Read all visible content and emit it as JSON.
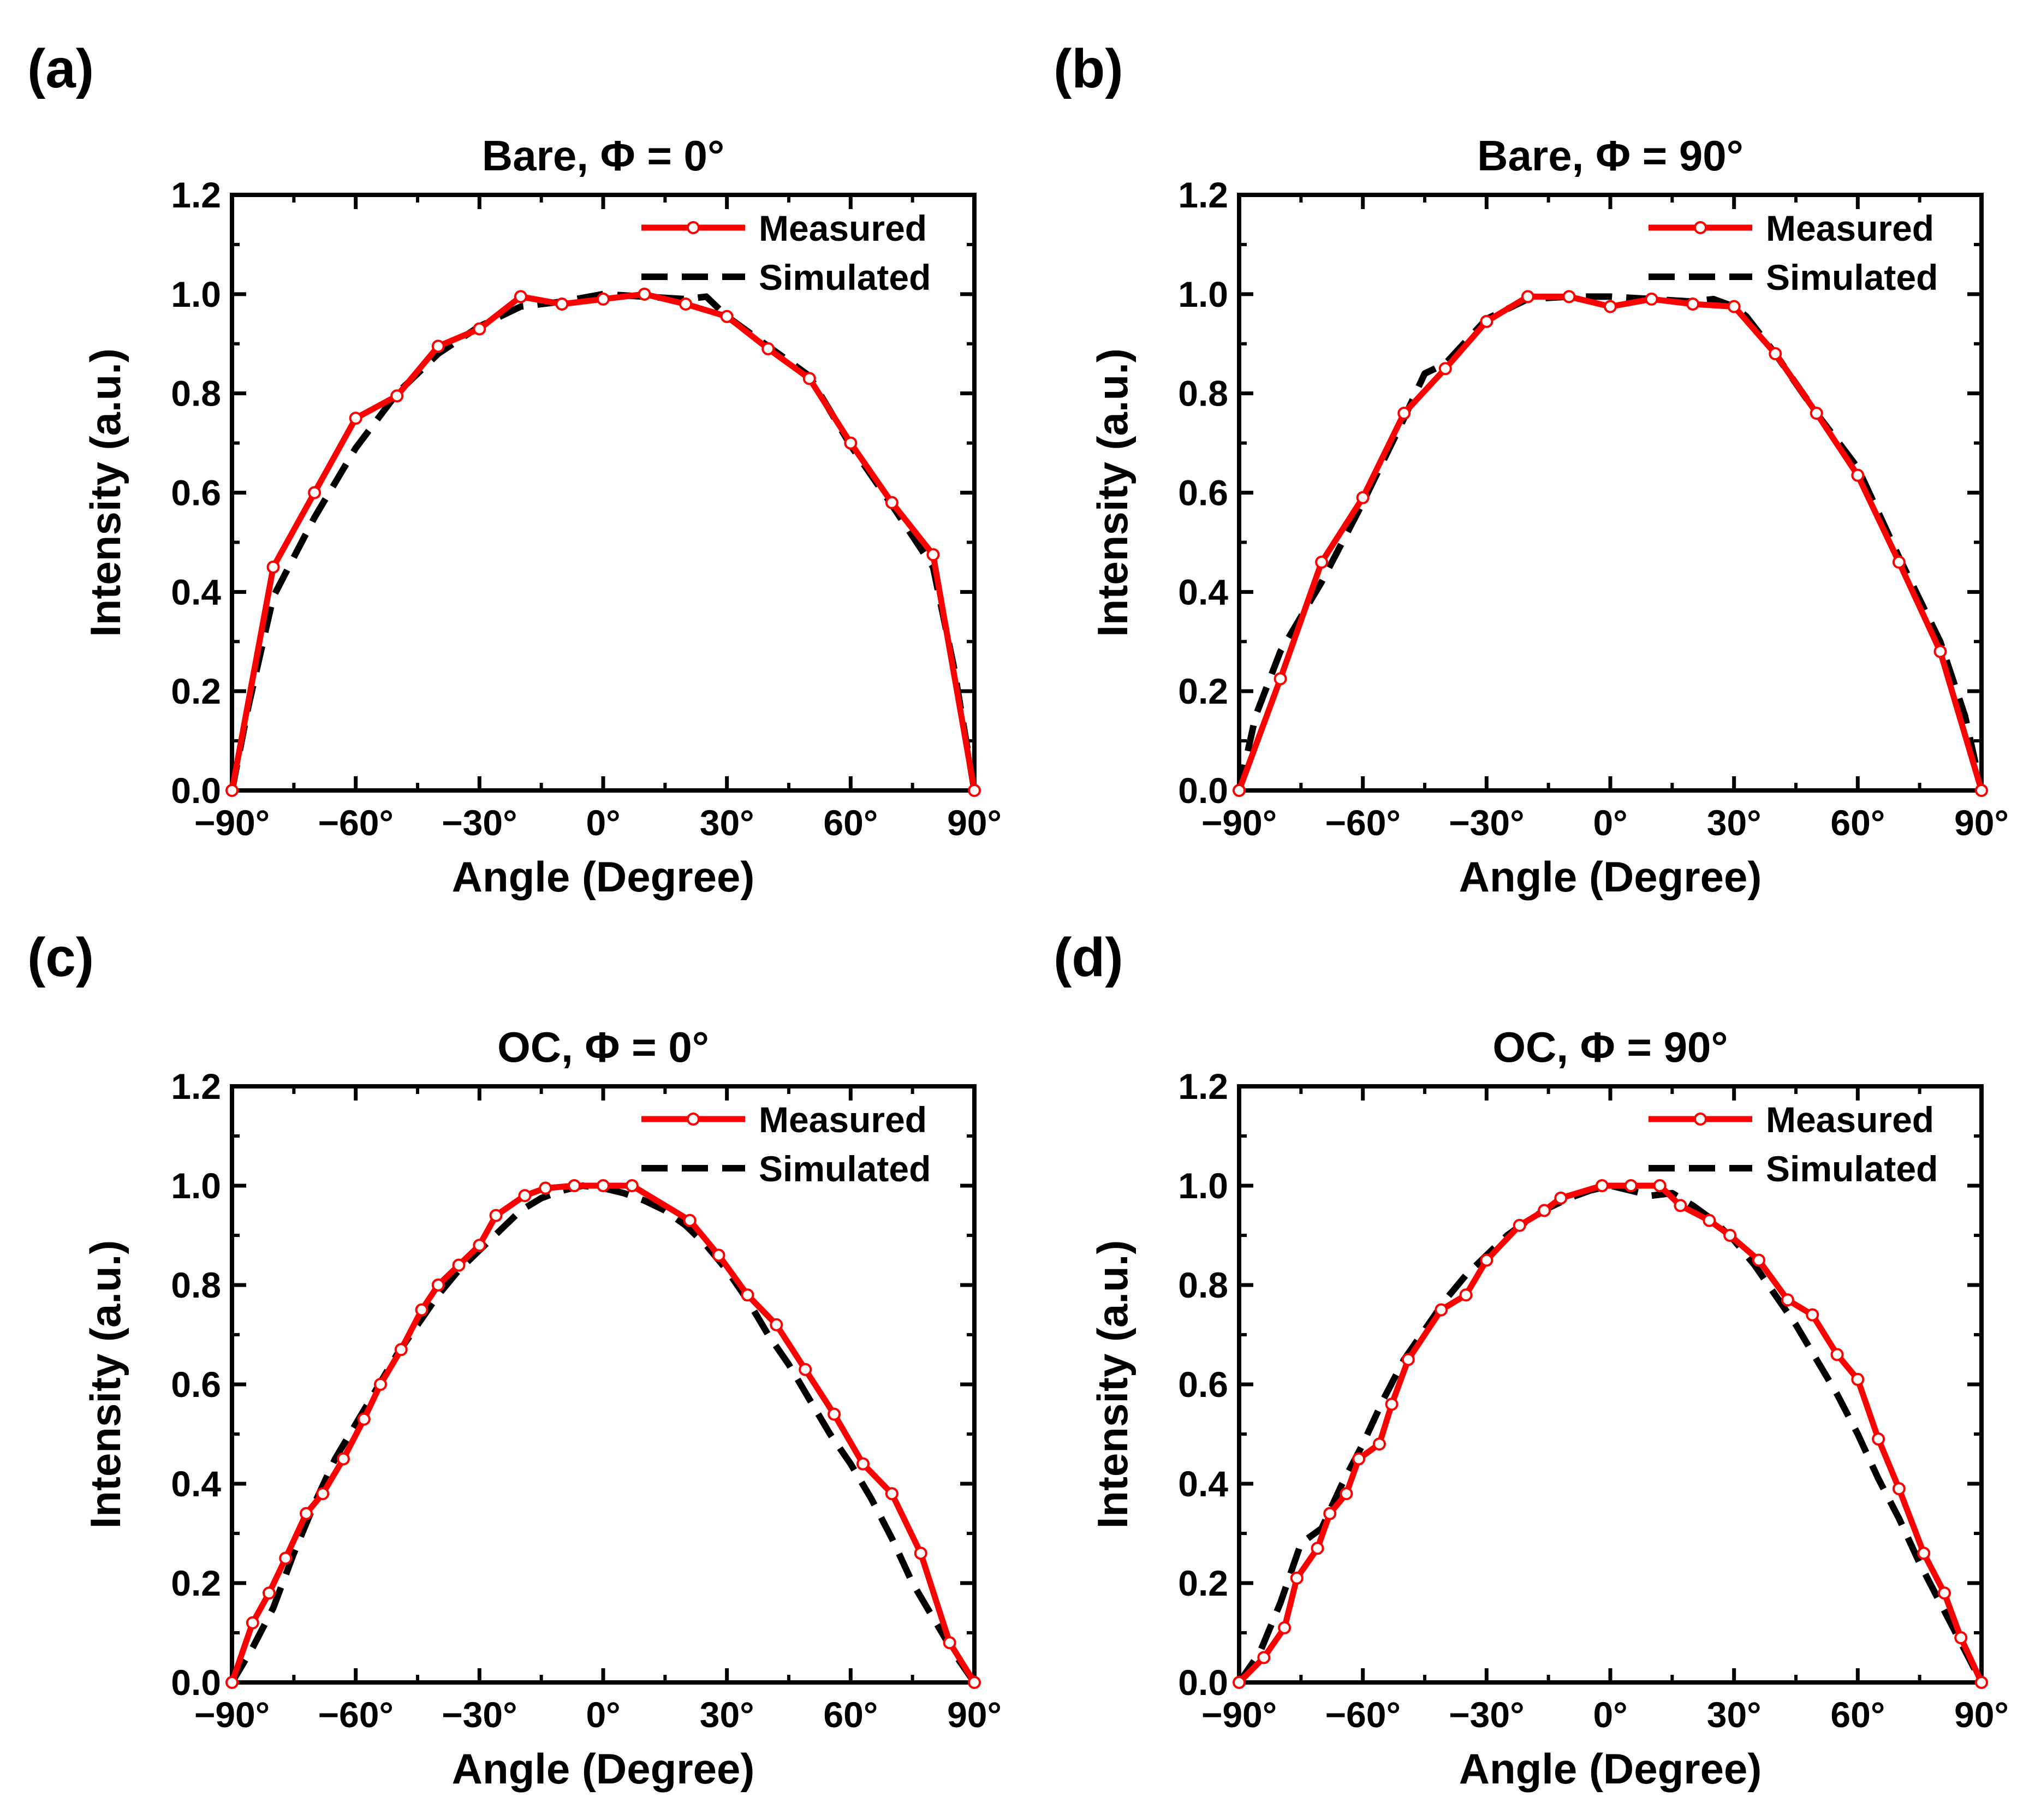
{
  "figure": {
    "colors": {
      "measured": "#ff0000",
      "simulated": "#000000",
      "axis": "#000000",
      "marker_fill": "#ffffff"
    }
  },
  "chart_data": [
    {
      "panel_label": "(a)",
      "type": "line",
      "title": "Bare, Φ = 0°",
      "xlabel": "Angle (Degree)",
      "ylabel": "Intensity (a.u.)",
      "xlim": [
        -90,
        90
      ],
      "ylim": [
        0,
        1.2
      ],
      "xticks": [
        -90,
        -60,
        -30,
        0,
        30,
        60,
        90
      ],
      "xtick_labels": [
        "−90°",
        "−60°",
        "−30°",
        "0°",
        "30°",
        "60°",
        "90°"
      ],
      "yticks": [
        0,
        0.2,
        0.4,
        0.6,
        0.8,
        1.0,
        1.2
      ],
      "ytick_labels": [
        "0.0",
        "0.2",
        "0.4",
        "0.6",
        "0.8",
        "1.0",
        "1.2"
      ],
      "legend": "top-right",
      "series": [
        {
          "name": "Measured",
          "style": "solid-marker",
          "x": [
            -90,
            -80,
            -70,
            -60,
            -50,
            -40,
            -30,
            -20,
            -10,
            0,
            10,
            20,
            30,
            40,
            50,
            60,
            70,
            80,
            90
          ],
          "y": [
            0.0,
            0.45,
            0.6,
            0.75,
            0.795,
            0.895,
            0.93,
            0.995,
            0.98,
            0.99,
            1.0,
            0.98,
            0.955,
            0.89,
            0.83,
            0.7,
            0.58,
            0.475,
            0.0
          ]
        },
        {
          "name": "Simulated",
          "style": "dashed",
          "x": [
            -90,
            -86,
            -80,
            -75,
            -70,
            -60,
            -50,
            -40,
            -30,
            -20,
            -10,
            0,
            10,
            20,
            25,
            30,
            40,
            50,
            60,
            70,
            80,
            85,
            90
          ],
          "y": [
            0.0,
            0.17,
            0.39,
            0.47,
            0.55,
            0.69,
            0.8,
            0.88,
            0.935,
            0.975,
            0.985,
            1.0,
            0.995,
            0.99,
            0.995,
            0.955,
            0.895,
            0.835,
            0.695,
            0.575,
            0.45,
            0.25,
            0.0
          ]
        }
      ]
    },
    {
      "panel_label": "(b)",
      "type": "line",
      "title": "Bare, Φ = 90°",
      "xlabel": "Angle (Degree)",
      "ylabel": "Intensity (a.u.)",
      "xlim": [
        -90,
        90
      ],
      "ylim": [
        0,
        1.2
      ],
      "xticks": [
        -90,
        -60,
        -30,
        0,
        30,
        60,
        90
      ],
      "xtick_labels": [
        "−90°",
        "−60°",
        "−30°",
        "0°",
        "30°",
        "60°",
        "90°"
      ],
      "yticks": [
        0,
        0.2,
        0.4,
        0.6,
        0.8,
        1.0,
        1.2
      ],
      "ytick_labels": [
        "0.0",
        "0.2",
        "0.4",
        "0.6",
        "0.8",
        "1.0",
        "1.2"
      ],
      "legend": "top-right",
      "series": [
        {
          "name": "Measured",
          "style": "solid-marker",
          "x": [
            -90,
            -80,
            -70,
            -60,
            -50,
            -40,
            -30,
            -20,
            -10,
            0,
            10,
            20,
            30,
            40,
            50,
            60,
            70,
            80,
            90
          ],
          "y": [
            0.0,
            0.225,
            0.46,
            0.59,
            0.76,
            0.85,
            0.945,
            0.995,
            0.995,
            0.975,
            0.99,
            0.98,
            0.975,
            0.88,
            0.76,
            0.635,
            0.46,
            0.28,
            0.0
          ]
        },
        {
          "name": "Simulated",
          "style": "dashed",
          "x": [
            -90,
            -86,
            -80,
            -70,
            -60,
            -50,
            -45,
            -40,
            -30,
            -20,
            -10,
            0,
            10,
            20,
            25,
            30,
            33,
            40,
            50,
            60,
            70,
            80,
            86,
            90
          ],
          "y": [
            0.0,
            0.15,
            0.28,
            0.42,
            0.58,
            0.75,
            0.84,
            0.86,
            0.95,
            0.99,
            0.995,
            0.995,
            0.99,
            0.985,
            0.99,
            0.975,
            0.955,
            0.88,
            0.76,
            0.65,
            0.47,
            0.3,
            0.15,
            0.0
          ]
        }
      ]
    },
    {
      "panel_label": "(c)",
      "type": "line",
      "title": "OC, Φ = 0°",
      "xlabel": "Angle (Degree)",
      "ylabel": "Intensity (a.u.)",
      "xlim": [
        -90,
        90
      ],
      "ylim": [
        0,
        1.2
      ],
      "xticks": [
        -90,
        -60,
        -30,
        0,
        30,
        60,
        90
      ],
      "xtick_labels": [
        "−90°",
        "−60°",
        "−30°",
        "0°",
        "30°",
        "60°",
        "90°"
      ],
      "yticks": [
        0,
        0.2,
        0.4,
        0.6,
        0.8,
        1.0,
        1.2
      ],
      "ytick_labels": [
        "0.0",
        "0.2",
        "0.4",
        "0.6",
        "0.8",
        "1.0",
        "1.2"
      ],
      "legend": "top-right",
      "series": [
        {
          "name": "Measured",
          "style": "solid-marker",
          "x": [
            -90,
            -85,
            -81,
            -77,
            -72,
            -68,
            -63,
            -58,
            -54,
            -49,
            -44,
            -40,
            -35,
            -30,
            -26,
            -19,
            -14,
            -7,
            0,
            7,
            21,
            28,
            35,
            42,
            49,
            56,
            63,
            70,
            77,
            84,
            90
          ],
          "y": [
            0.0,
            0.12,
            0.18,
            0.25,
            0.34,
            0.38,
            0.45,
            0.53,
            0.6,
            0.67,
            0.75,
            0.8,
            0.84,
            0.88,
            0.94,
            0.98,
            0.995,
            1.0,
            1.0,
            1.0,
            0.93,
            0.86,
            0.78,
            0.72,
            0.63,
            0.54,
            0.44,
            0.38,
            0.26,
            0.08,
            0.0
          ]
        },
        {
          "name": "Simulated",
          "style": "dashed",
          "x": [
            -90,
            -85,
            -80,
            -75,
            -70,
            -65,
            -60,
            -55,
            -50,
            -45,
            -40,
            -35,
            -30,
            -25,
            -20,
            -15,
            -10,
            -5,
            0,
            5,
            10,
            15,
            20,
            25,
            30,
            35,
            40,
            45,
            50,
            55,
            60,
            65,
            70,
            75,
            80,
            85,
            90
          ],
          "y": [
            0.0,
            0.07,
            0.15,
            0.26,
            0.36,
            0.45,
            0.52,
            0.59,
            0.66,
            0.72,
            0.78,
            0.83,
            0.87,
            0.91,
            0.95,
            0.975,
            0.99,
            1.0,
            0.995,
            0.985,
            0.97,
            0.95,
            0.92,
            0.88,
            0.83,
            0.77,
            0.7,
            0.64,
            0.57,
            0.5,
            0.44,
            0.37,
            0.29,
            0.2,
            0.13,
            0.06,
            0.0
          ]
        }
      ]
    },
    {
      "panel_label": "(d)",
      "type": "line",
      "title": "OC, Φ = 90°",
      "xlabel": "Angle (Degree)",
      "ylabel": "Intensity (a.u.)",
      "xlim": [
        -90,
        90
      ],
      "ylim": [
        0,
        1.2
      ],
      "xticks": [
        -90,
        -60,
        -30,
        0,
        30,
        60,
        90
      ],
      "xtick_labels": [
        "−90°",
        "−60°",
        "−30°",
        "0°",
        "30°",
        "60°",
        "90°"
      ],
      "yticks": [
        0,
        0.2,
        0.4,
        0.6,
        0.8,
        1.0,
        1.2
      ],
      "ytick_labels": [
        "0.0",
        "0.2",
        "0.4",
        "0.6",
        "0.8",
        "1.0",
        "1.2"
      ],
      "legend": "top-right",
      "series": [
        {
          "name": "Measured",
          "style": "solid-marker",
          "x": [
            -90,
            -84,
            -79,
            -76,
            -71,
            -68,
            -64,
            -61,
            -56,
            -53,
            -49,
            -41,
            -35,
            -30,
            -22,
            -16,
            -12,
            -2,
            5,
            12,
            17,
            24,
            29,
            36,
            43,
            49,
            55,
            60,
            65,
            70,
            76,
            81,
            85,
            90
          ],
          "y": [
            0.0,
            0.05,
            0.11,
            0.21,
            0.27,
            0.34,
            0.38,
            0.45,
            0.48,
            0.56,
            0.65,
            0.75,
            0.78,
            0.85,
            0.92,
            0.95,
            0.975,
            1.0,
            1.0,
            1.0,
            0.96,
            0.93,
            0.9,
            0.85,
            0.77,
            0.74,
            0.66,
            0.61,
            0.49,
            0.39,
            0.26,
            0.18,
            0.09,
            0.0
          ]
        },
        {
          "name": "Simulated",
          "style": "dashed",
          "x": [
            -90,
            -85,
            -80,
            -75,
            -70,
            -65,
            -60,
            -55,
            -50,
            -45,
            -40,
            -35,
            -30,
            -25,
            -20,
            -15,
            -10,
            -5,
            0,
            5,
            10,
            15,
            20,
            25,
            30,
            35,
            40,
            45,
            50,
            55,
            60,
            65,
            70,
            75,
            80,
            85,
            90
          ],
          "y": [
            0.0,
            0.06,
            0.16,
            0.28,
            0.31,
            0.4,
            0.48,
            0.57,
            0.65,
            0.71,
            0.77,
            0.82,
            0.86,
            0.9,
            0.93,
            0.955,
            0.975,
            0.99,
            1.0,
            0.99,
            0.98,
            0.985,
            0.96,
            0.93,
            0.89,
            0.84,
            0.78,
            0.72,
            0.65,
            0.58,
            0.5,
            0.41,
            0.33,
            0.24,
            0.16,
            0.08,
            0.0
          ]
        }
      ]
    }
  ]
}
